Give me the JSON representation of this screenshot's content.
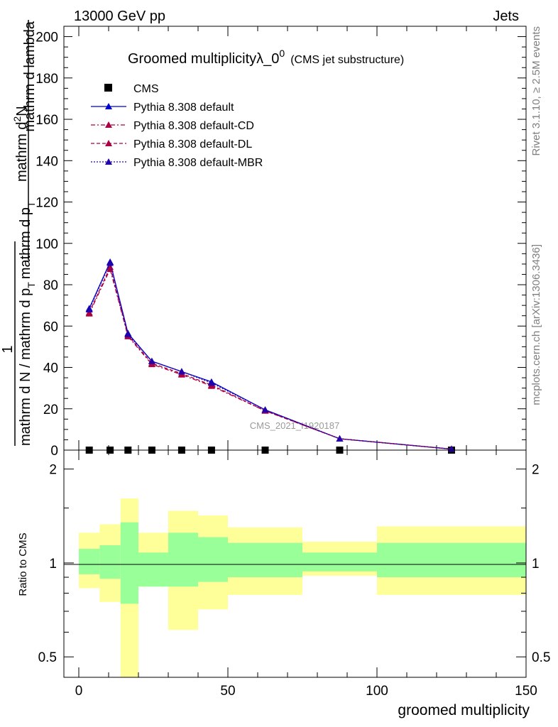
{
  "header": {
    "left": "13000 GeV pp",
    "right": "Jets"
  },
  "side_labels": {
    "rivet": "Rivet 3.1.10, ≥ 2.5M events",
    "mcplots": "mcplots.cern.ch [arXiv:1306.3436]"
  },
  "watermark": "CMS_2021_I1920187",
  "colors": {
    "cms": "#000000",
    "default": "#0000cc",
    "cd": "#aa0044",
    "dl": "#aa0044",
    "mbr": "#2200aa",
    "band_inner": "#99ff99",
    "band_outer": "#ffff99"
  },
  "chart_data": [
    {
      "type": "line",
      "title": "Groomed multiplicityλ_0",
      "title_sup": "0",
      "title_suffix": "(CMS jet substructure)",
      "ylabel": {
        "frac_num": "1",
        "frac_den": "mathrm d N / mathrm d p",
        "frac_den_sub": "T",
        "frac_den_tail": "mathrm d p",
        "frac_den_tail_sub": "T",
        "main_num": "mathrm d",
        "main_num_sup": "2",
        "main_num_tail": "N",
        "main_den": "mathrm d lambda"
      },
      "xlim": [
        -5,
        150
      ],
      "ylim": [
        0,
        205
      ],
      "yticks": [
        0,
        20,
        40,
        60,
        80,
        100,
        120,
        140,
        160,
        180,
        200
      ],
      "x": [
        3.5,
        10.5,
        16.5,
        24.5,
        34.5,
        44.5,
        62.5,
        87.5,
        125
      ],
      "series": [
        {
          "name": "CMS",
          "marker": "square",
          "values": [
            0,
            0,
            0,
            0,
            0,
            0,
            0,
            0,
            0
          ]
        },
        {
          "name": "Pythia 8.308 default",
          "style": "solid",
          "values": [
            68.5,
            91,
            56.5,
            43,
            38,
            33,
            19.5,
            5.5,
            0.5
          ]
        },
        {
          "name": "Pythia 8.308 default-CD",
          "style": "dashdot",
          "values": [
            66,
            87.5,
            55,
            41.5,
            36.5,
            31,
            19,
            5.5,
            0.5
          ]
        },
        {
          "name": "Pythia 8.308 default-DL",
          "style": "dashed",
          "values": [
            66.5,
            88.5,
            55.5,
            42,
            37,
            31.5,
            19,
            5.5,
            0.5
          ]
        },
        {
          "name": "Pythia 8.308 default-MBR",
          "style": "dotted",
          "values": [
            68,
            90.5,
            56,
            43,
            38,
            32.5,
            19.5,
            5.5,
            0.5
          ]
        }
      ]
    },
    {
      "type": "area",
      "xlabel": "groomed multiplicity",
      "ylabel": "Ratio to CMS",
      "xlim": [
        -5,
        150
      ],
      "ylim": [
        0.43,
        2.3
      ],
      "scale": "log",
      "yticks": [
        0.5,
        1,
        2
      ],
      "xticks": [
        0,
        50,
        100,
        150
      ],
      "bins": [
        {
          "lo": 0,
          "hi": 7,
          "inner": [
            0.92,
            1.11
          ],
          "outer": [
            0.83,
            1.25
          ]
        },
        {
          "lo": 7,
          "hi": 14,
          "inner": [
            0.89,
            1.14
          ],
          "outer": [
            0.75,
            1.33
          ]
        },
        {
          "lo": 14,
          "hi": 20,
          "inner": [
            0.74,
            1.35
          ],
          "outer": [
            0.4,
            1.61
          ]
        },
        {
          "lo": 20,
          "hi": 30,
          "inner": [
            0.84,
            1.08
          ],
          "outer": [
            0.84,
            1.25
          ]
        },
        {
          "lo": 30,
          "hi": 40,
          "inner": [
            0.84,
            1.25
          ],
          "outer": [
            0.61,
            1.47
          ]
        },
        {
          "lo": 40,
          "hi": 50,
          "inner": [
            0.87,
            1.21
          ],
          "outer": [
            0.71,
            1.42
          ]
        },
        {
          "lo": 50,
          "hi": 75,
          "inner": [
            0.9,
            1.16
          ],
          "outer": [
            0.79,
            1.3
          ]
        },
        {
          "lo": 75,
          "hi": 100,
          "inner": [
            0.94,
            1.08
          ],
          "outer": [
            0.91,
            1.17
          ]
        },
        {
          "lo": 100,
          "hi": 150,
          "inner": [
            0.9,
            1.16
          ],
          "outer": [
            0.79,
            1.31
          ]
        }
      ]
    }
  ]
}
